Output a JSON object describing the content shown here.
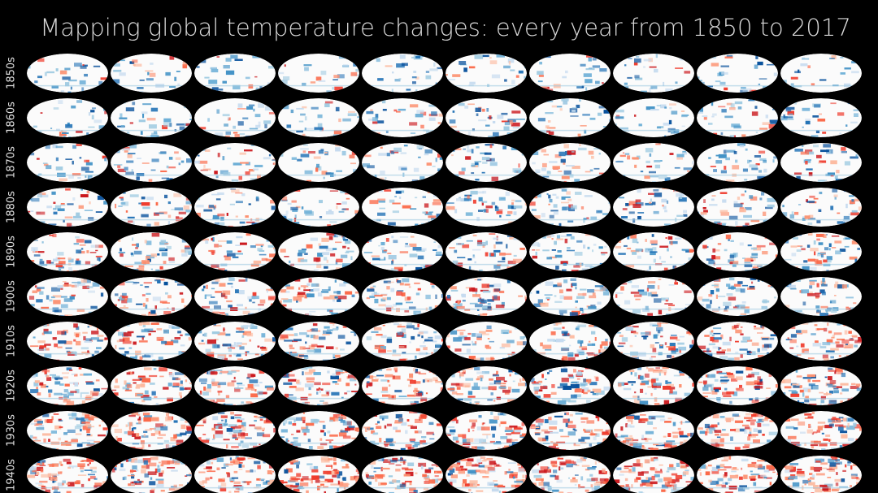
{
  "title": "Mapping global temperature changes: every year from 1850 to 2017",
  "rows": [
    "1850s",
    "1860s",
    "1870s",
    "1880s",
    "1890s",
    "1900s",
    "1910s",
    "1920s",
    "1930s",
    "1940s"
  ]
}
